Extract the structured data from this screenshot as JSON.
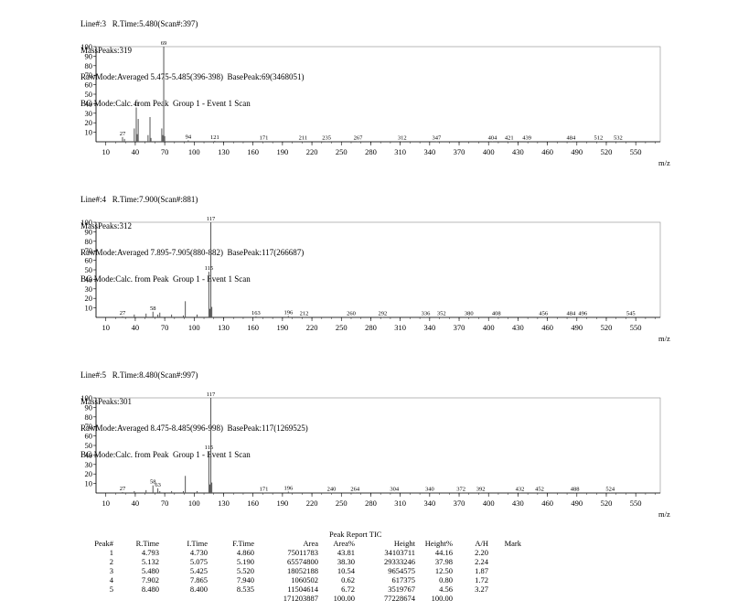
{
  "spectra": [
    {
      "header": [
        "Line#:3   R.Time:5.480(Scan#:397)",
        "MassPeaks:319",
        "RawMode:Averaged 5.475-5.485(396-398)  BasePeak:69(3468051)",
        "BG Mode:Calc. from Peak  Group 1 - Event 1 Scan"
      ]
    },
    {
      "header": [
        "Line#:4   R.Time:7.900(Scan#:881)",
        "MassPeaks:312",
        "RawMode:Averaged 7.895-7.905(880-882)  BasePeak:117(266687)",
        "BG Mode:Calc. from Peak  Group 1 - Event 1 Scan"
      ]
    },
    {
      "header": [
        "Line#:5   R.Time:8.480(Scan#:997)",
        "MassPeaks:301",
        "RawMode:Averaged 8.475-8.485(996-998)  BasePeak:117(1269525)",
        "BG Mode:Calc. from Peak  Group 1 - Event 1 Scan"
      ]
    }
  ],
  "chart_data": [
    {
      "type": "bar",
      "xlabel": "m/z",
      "xlim": [
        0,
        575
      ],
      "ylim": [
        0,
        100
      ],
      "xticks": [
        10,
        40,
        70,
        100,
        130,
        160,
        190,
        220,
        250,
        280,
        310,
        340,
        370,
        400,
        430,
        460,
        490,
        520,
        550
      ],
      "yticks": [
        10,
        20,
        30,
        40,
        50,
        60,
        70,
        80,
        90,
        100
      ],
      "peaks": [
        [
          27,
          5
        ],
        [
          29,
          3
        ],
        [
          39,
          14
        ],
        [
          41,
          36
        ],
        [
          42,
          8
        ],
        [
          43,
          24
        ],
        [
          53,
          7
        ],
        [
          55,
          26
        ],
        [
          56,
          4
        ],
        [
          67,
          14
        ],
        [
          68,
          7
        ],
        [
          69,
          100
        ],
        [
          70,
          6
        ],
        [
          94,
          1.5
        ],
        [
          121,
          1
        ],
        [
          171,
          0.5
        ],
        [
          211,
          0.5
        ],
        [
          235,
          0.5
        ],
        [
          267,
          0.5
        ],
        [
          312,
          0.5
        ],
        [
          347,
          0.5
        ],
        [
          404,
          0.5
        ],
        [
          421,
          0.5
        ],
        [
          439,
          0.5
        ],
        [
          484,
          0.5
        ],
        [
          512,
          0.5
        ],
        [
          532,
          0.5
        ]
      ],
      "labels": [
        [
          27,
          "27"
        ],
        [
          41,
          "41"
        ],
        [
          69,
          "69"
        ],
        [
          94,
          "94"
        ],
        [
          121,
          "121"
        ],
        [
          171,
          "171"
        ],
        [
          211,
          "211"
        ],
        [
          235,
          "235"
        ],
        [
          267,
          "267"
        ],
        [
          312,
          "312"
        ],
        [
          347,
          "347"
        ],
        [
          404,
          "404"
        ],
        [
          421,
          "421"
        ],
        [
          439,
          "439"
        ],
        [
          484,
          "484"
        ],
        [
          512,
          "512"
        ],
        [
          532,
          "532"
        ]
      ]
    },
    {
      "type": "bar",
      "xlabel": "m/z",
      "xlim": [
        0,
        575
      ],
      "ylim": [
        0,
        100
      ],
      "xticks": [
        10,
        40,
        70,
        100,
        130,
        160,
        190,
        220,
        250,
        280,
        310,
        340,
        370,
        400,
        430,
        460,
        490,
        520,
        550
      ],
      "yticks": [
        10,
        20,
        30,
        40,
        50,
        60,
        70,
        80,
        90,
        100
      ],
      "peaks": [
        [
          27,
          1
        ],
        [
          39,
          3
        ],
        [
          51,
          4
        ],
        [
          58,
          6
        ],
        [
          63,
          3
        ],
        [
          65,
          5
        ],
        [
          77,
          3
        ],
        [
          89,
          2
        ],
        [
          91,
          17
        ],
        [
          103,
          3
        ],
        [
          115,
          48
        ],
        [
          116,
          9
        ],
        [
          117,
          100
        ],
        [
          118,
          11
        ],
        [
          163,
          1
        ],
        [
          196,
          1.5
        ],
        [
          212,
          0.5
        ],
        [
          260,
          0.5
        ],
        [
          292,
          0.5
        ],
        [
          336,
          0.5
        ],
        [
          352,
          0.5
        ],
        [
          380,
          0.5
        ],
        [
          408,
          0.5
        ],
        [
          456,
          0.5
        ],
        [
          484,
          0.5
        ],
        [
          496,
          0.5
        ],
        [
          545,
          0.5
        ]
      ],
      "labels": [
        [
          27,
          "27"
        ],
        [
          58,
          "58"
        ],
        [
          115,
          "115"
        ],
        [
          117,
          "117"
        ],
        [
          163,
          "163"
        ],
        [
          196,
          "196"
        ],
        [
          212,
          "212"
        ],
        [
          260,
          "260"
        ],
        [
          292,
          "292"
        ],
        [
          336,
          "336"
        ],
        [
          352,
          "352"
        ],
        [
          380,
          "380"
        ],
        [
          408,
          "408"
        ],
        [
          456,
          "456"
        ],
        [
          484,
          "484"
        ],
        [
          496,
          "496"
        ],
        [
          545,
          "545"
        ]
      ]
    },
    {
      "type": "bar",
      "xlabel": "m/z",
      "xlim": [
        0,
        575
      ],
      "ylim": [
        0,
        100
      ],
      "xticks": [
        10,
        40,
        70,
        100,
        130,
        160,
        190,
        220,
        250,
        280,
        310,
        340,
        370,
        400,
        430,
        460,
        490,
        520,
        550
      ],
      "yticks": [
        10,
        20,
        30,
        40,
        50,
        60,
        70,
        80,
        90,
        100
      ],
      "peaks": [
        [
          27,
          1
        ],
        [
          39,
          2
        ],
        [
          51,
          3
        ],
        [
          58,
          8
        ],
        [
          63,
          5
        ],
        [
          65,
          2
        ],
        [
          77,
          2
        ],
        [
          89,
          2
        ],
        [
          91,
          18
        ],
        [
          103,
          2
        ],
        [
          115,
          44
        ],
        [
          116,
          9
        ],
        [
          117,
          100
        ],
        [
          118,
          11
        ],
        [
          171,
          0.5
        ],
        [
          196,
          1.5
        ],
        [
          240,
          0.5
        ],
        [
          264,
          0.5
        ],
        [
          304,
          0.5
        ],
        [
          340,
          0.5
        ],
        [
          372,
          0.5
        ],
        [
          392,
          0.5
        ],
        [
          432,
          0.5
        ],
        [
          452,
          0.5
        ],
        [
          488,
          0.5
        ],
        [
          524,
          0.5
        ]
      ],
      "labels": [
        [
          27,
          "27"
        ],
        [
          58,
          "58"
        ],
        [
          63,
          "63"
        ],
        [
          115,
          "115"
        ],
        [
          117,
          "117"
        ],
        [
          171,
          "171"
        ],
        [
          196,
          "196"
        ],
        [
          240,
          "240"
        ],
        [
          264,
          "264"
        ],
        [
          304,
          "304"
        ],
        [
          340,
          "340"
        ],
        [
          372,
          "372"
        ],
        [
          392,
          "392"
        ],
        [
          432,
          "432"
        ],
        [
          452,
          "452"
        ],
        [
          488,
          "488"
        ],
        [
          524,
          "524"
        ]
      ]
    }
  ],
  "report": {
    "title": "Peak Report TIC",
    "columns": [
      "Peak#",
      "R.Time",
      "I.Time",
      "F.Time",
      "Area",
      "Area%",
      "Height",
      "Height%",
      "A/H",
      "Mark"
    ],
    "rows": [
      [
        "1",
        "4.793",
        "4.730",
        "4.860",
        "75011783",
        "43.81",
        "34103711",
        "44.16",
        "2.20",
        ""
      ],
      [
        "2",
        "5.132",
        "5.075",
        "5.190",
        "65574800",
        "38.30",
        "29333246",
        "37.98",
        "2.24",
        ""
      ],
      [
        "3",
        "5.480",
        "5.425",
        "5.520",
        "18052188",
        "10.54",
        "9654575",
        "12.50",
        "1.87",
        ""
      ],
      [
        "4",
        "7.902",
        "7.865",
        "7.940",
        "1060502",
        "0.62",
        "617375",
        "0.80",
        "1.72",
        ""
      ],
      [
        "5",
        "8.480",
        "8.400",
        "8.535",
        "11504614",
        "6.72",
        "3519767",
        "4.56",
        "3.27",
        ""
      ]
    ],
    "totals": [
      "",
      "",
      "",
      "",
      "171203887",
      "100.00",
      "77228674",
      "100.00",
      "",
      ""
    ]
  }
}
